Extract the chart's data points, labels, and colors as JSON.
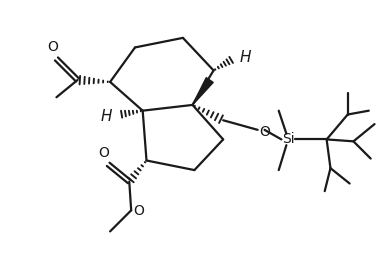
{
  "bg_color": "#ffffff",
  "line_color": "#1a1a1a",
  "line_width": 1.6,
  "fig_width": 3.85,
  "fig_height": 2.57,
  "dpi": 100,
  "xlim": [
    0,
    10
  ],
  "ylim": [
    0,
    6.67
  ]
}
